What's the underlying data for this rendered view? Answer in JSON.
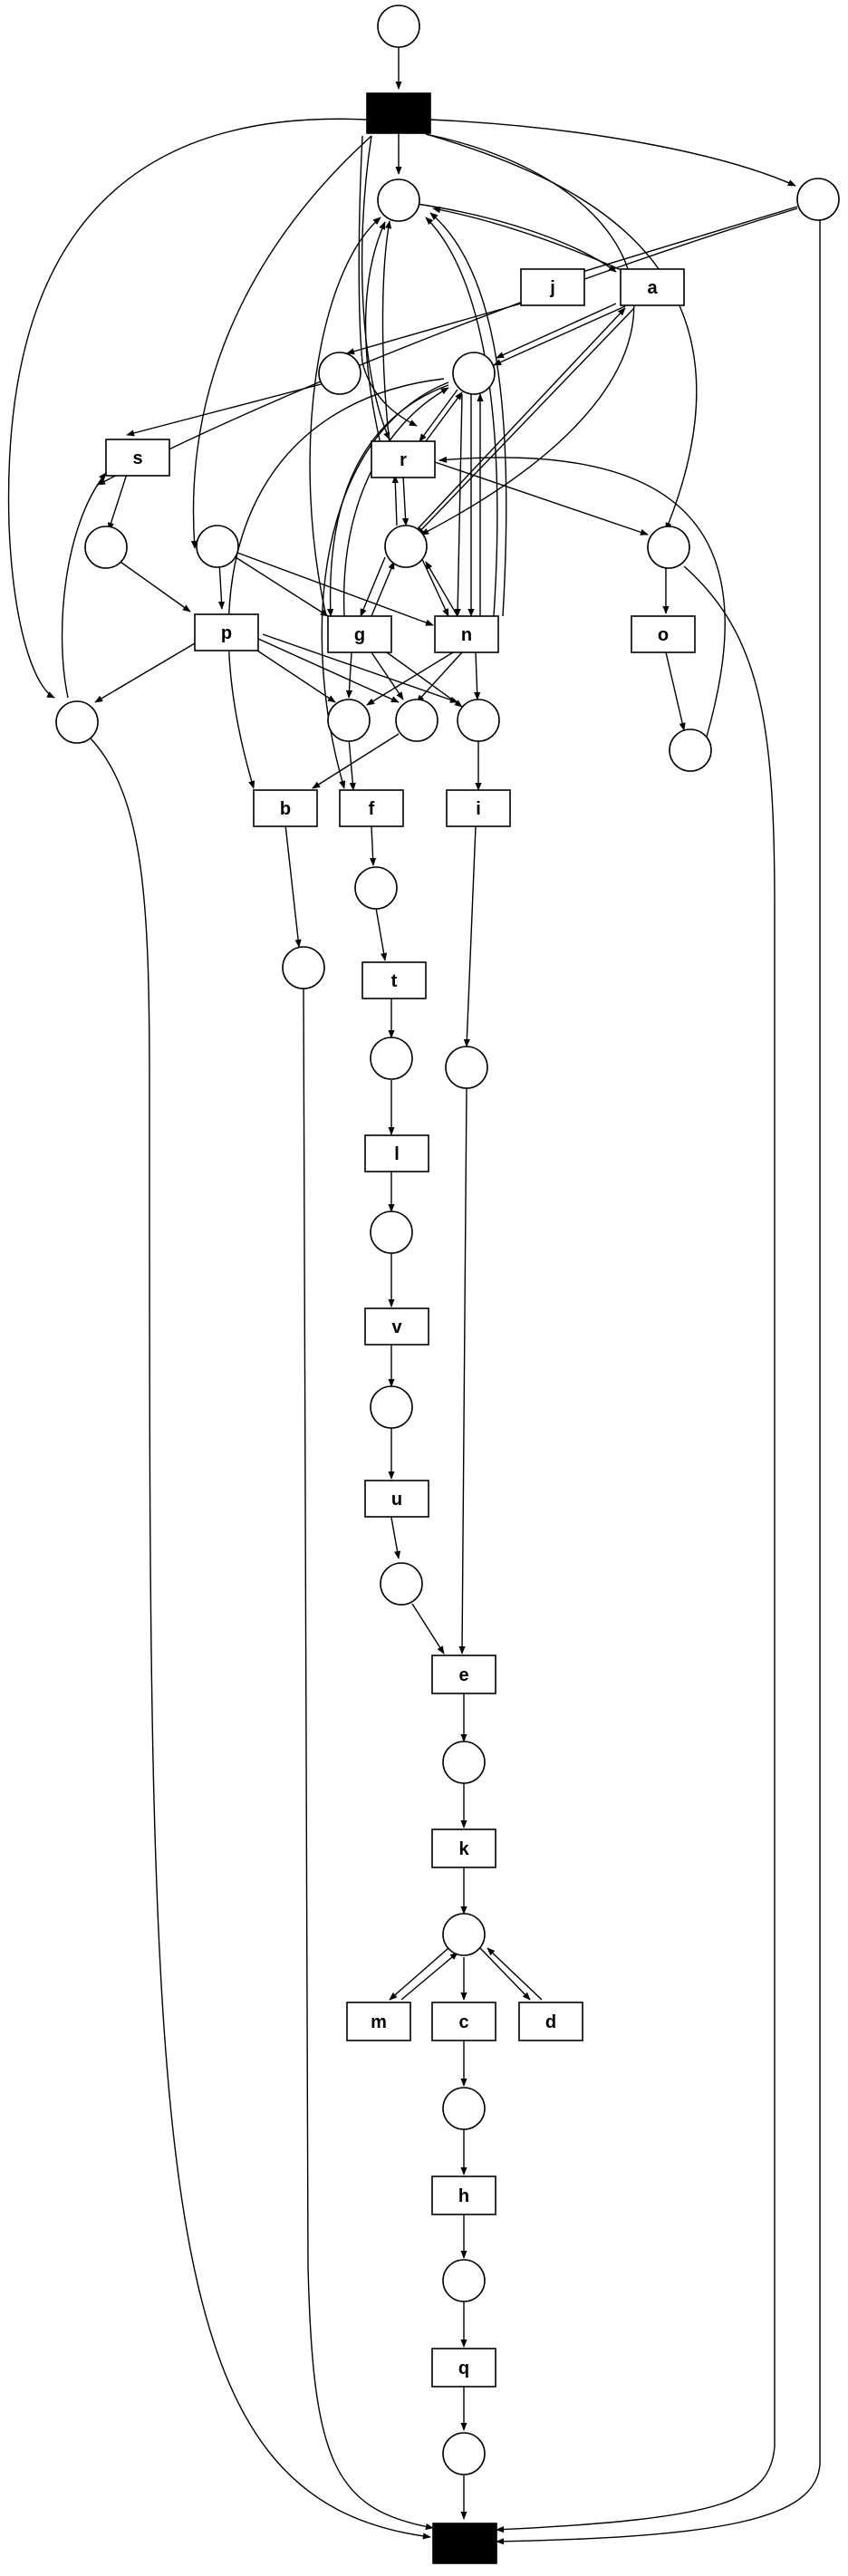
{
  "diagram": {
    "transitions": [
      {
        "id": "start",
        "label": ""
      },
      {
        "id": "end",
        "label": ""
      },
      {
        "id": "j",
        "label": "j"
      },
      {
        "id": "a",
        "label": "a"
      },
      {
        "id": "s",
        "label": "s"
      },
      {
        "id": "r",
        "label": "r"
      },
      {
        "id": "p",
        "label": "p"
      },
      {
        "id": "g",
        "label": "g"
      },
      {
        "id": "n",
        "label": "n"
      },
      {
        "id": "o",
        "label": "o"
      },
      {
        "id": "b",
        "label": "b"
      },
      {
        "id": "f",
        "label": "f"
      },
      {
        "id": "i",
        "label": "i"
      },
      {
        "id": "t",
        "label": "t"
      },
      {
        "id": "l",
        "label": "l"
      },
      {
        "id": "v",
        "label": "v"
      },
      {
        "id": "u",
        "label": "u"
      },
      {
        "id": "e",
        "label": "e"
      },
      {
        "id": "k",
        "label": "k"
      },
      {
        "id": "m",
        "label": "m"
      },
      {
        "id": "c",
        "label": "c"
      },
      {
        "id": "d",
        "label": "d"
      },
      {
        "id": "h",
        "label": "h"
      },
      {
        "id": "q",
        "label": "q"
      }
    ]
  }
}
